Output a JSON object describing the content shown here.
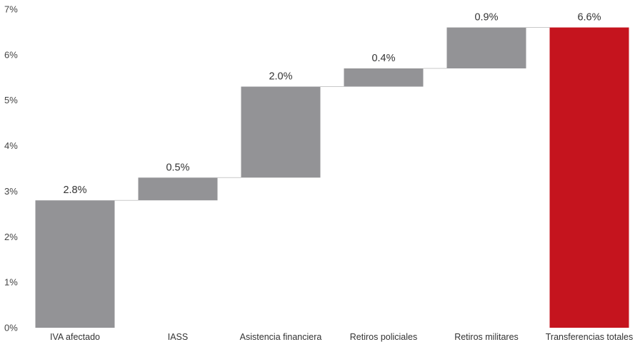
{
  "chart_data": {
    "type": "bar",
    "subtype": "waterfall",
    "categories": [
      "IVA afectado",
      "IASS",
      "Asistencia financiera",
      "Retiros policiales",
      "Retiros militares",
      "Transferencias totales"
    ],
    "values": [
      2.8,
      0.5,
      2.0,
      0.4,
      0.9,
      6.6
    ],
    "data_labels": [
      "2.8%",
      "0.5%",
      "2.0%",
      "0.4%",
      "0.9%",
      "6.6%"
    ],
    "ylim": [
      0,
      7
    ],
    "yticks": [
      "0%",
      "1%",
      "2%",
      "3%",
      "4%",
      "5%",
      "6%",
      "7%"
    ],
    "grid": false,
    "legend": "none",
    "xlabel": "",
    "ylabel": "",
    "title": ""
  },
  "colors": {
    "increment": "#939396",
    "total": "#c5141e",
    "connector": "#c9c9c9"
  }
}
